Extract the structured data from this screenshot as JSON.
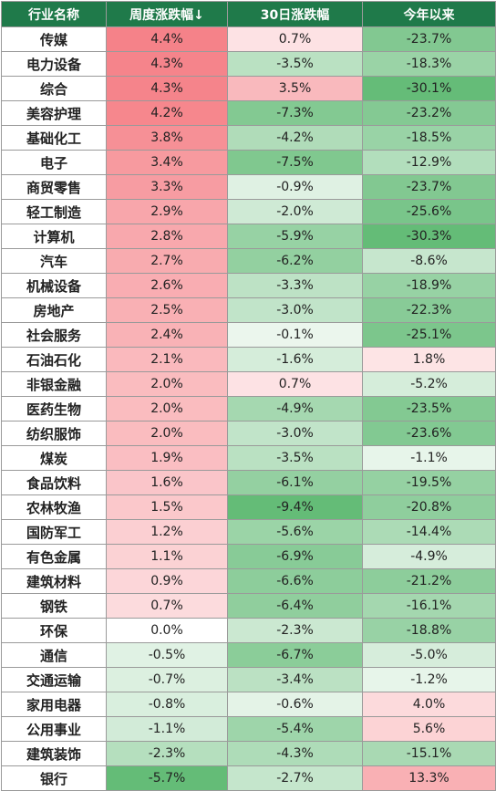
{
  "headers": [
    "行业名称",
    "周度涨跌幅↓",
    "30日涨跌幅",
    "今年以来"
  ],
  "colors": {
    "header_bg": "#1f7a4a",
    "header_text": "#ffffff",
    "positive": "#f25a63",
    "negative": "#5cb870",
    "border": "#9a9a9a"
  },
  "rows": [
    {
      "name": "传媒",
      "weekly": "4.4%",
      "d30": "0.7%",
      "ytd": "-23.7%"
    },
    {
      "name": "电力设备",
      "weekly": "4.3%",
      "d30": "-3.5%",
      "ytd": "-18.3%"
    },
    {
      "name": "综合",
      "weekly": "4.3%",
      "d30": "3.5%",
      "ytd": "-30.1%"
    },
    {
      "name": "美容护理",
      "weekly": "4.2%",
      "d30": "-7.3%",
      "ytd": "-23.2%"
    },
    {
      "name": "基础化工",
      "weekly": "3.8%",
      "d30": "-4.2%",
      "ytd": "-18.5%"
    },
    {
      "name": "电子",
      "weekly": "3.4%",
      "d30": "-7.5%",
      "ytd": "-12.9%"
    },
    {
      "name": "商贸零售",
      "weekly": "3.3%",
      "d30": "-0.9%",
      "ytd": "-23.7%"
    },
    {
      "name": "轻工制造",
      "weekly": "2.9%",
      "d30": "-2.0%",
      "ytd": "-25.6%"
    },
    {
      "name": "计算机",
      "weekly": "2.8%",
      "d30": "-5.9%",
      "ytd": "-30.3%"
    },
    {
      "name": "汽车",
      "weekly": "2.7%",
      "d30": "-6.2%",
      "ytd": "-8.6%"
    },
    {
      "name": "机械设备",
      "weekly": "2.6%",
      "d30": "-3.3%",
      "ytd": "-18.9%"
    },
    {
      "name": "房地产",
      "weekly": "2.5%",
      "d30": "-3.0%",
      "ytd": "-22.3%"
    },
    {
      "name": "社会服务",
      "weekly": "2.4%",
      "d30": "-0.1%",
      "ytd": "-25.1%"
    },
    {
      "name": "石油石化",
      "weekly": "2.1%",
      "d30": "-1.6%",
      "ytd": "1.8%"
    },
    {
      "name": "非银金融",
      "weekly": "2.0%",
      "d30": "0.7%",
      "ytd": "-5.2%"
    },
    {
      "name": "医药生物",
      "weekly": "2.0%",
      "d30": "-4.9%",
      "ytd": "-23.5%"
    },
    {
      "name": "纺织服饰",
      "weekly": "2.0%",
      "d30": "-3.0%",
      "ytd": "-23.6%"
    },
    {
      "name": "煤炭",
      "weekly": "1.9%",
      "d30": "-3.5%",
      "ytd": "-1.1%"
    },
    {
      "name": "食品饮料",
      "weekly": "1.6%",
      "d30": "-6.1%",
      "ytd": "-19.5%"
    },
    {
      "name": "农林牧渔",
      "weekly": "1.5%",
      "d30": "-9.4%",
      "ytd": "-20.8%"
    },
    {
      "name": "国防军工",
      "weekly": "1.2%",
      "d30": "-5.6%",
      "ytd": "-14.4%"
    },
    {
      "name": "有色金属",
      "weekly": "1.1%",
      "d30": "-6.9%",
      "ytd": "-4.9%"
    },
    {
      "name": "建筑材料",
      "weekly": "0.9%",
      "d30": "-6.6%",
      "ytd": "-21.2%"
    },
    {
      "name": "钢铁",
      "weekly": "0.7%",
      "d30": "-6.4%",
      "ytd": "-16.1%"
    },
    {
      "name": "环保",
      "weekly": "0.0%",
      "d30": "-2.3%",
      "ytd": "-18.8%"
    },
    {
      "name": "通信",
      "weekly": "-0.5%",
      "d30": "-6.7%",
      "ytd": "-5.0%"
    },
    {
      "name": "交通运输",
      "weekly": "-0.7%",
      "d30": "-3.4%",
      "ytd": "-1.2%"
    },
    {
      "name": "家用电器",
      "weekly": "-0.8%",
      "d30": "-0.6%",
      "ytd": "4.0%"
    },
    {
      "name": "公用事业",
      "weekly": "-1.1%",
      "d30": "-5.4%",
      "ytd": "5.6%"
    },
    {
      "name": "建筑装饰",
      "weekly": "-2.3%",
      "d30": "-4.3%",
      "ytd": "-15.1%"
    },
    {
      "name": "银行",
      "weekly": "-5.7%",
      "d30": "-2.7%",
      "ytd": "13.3%"
    }
  ]
}
